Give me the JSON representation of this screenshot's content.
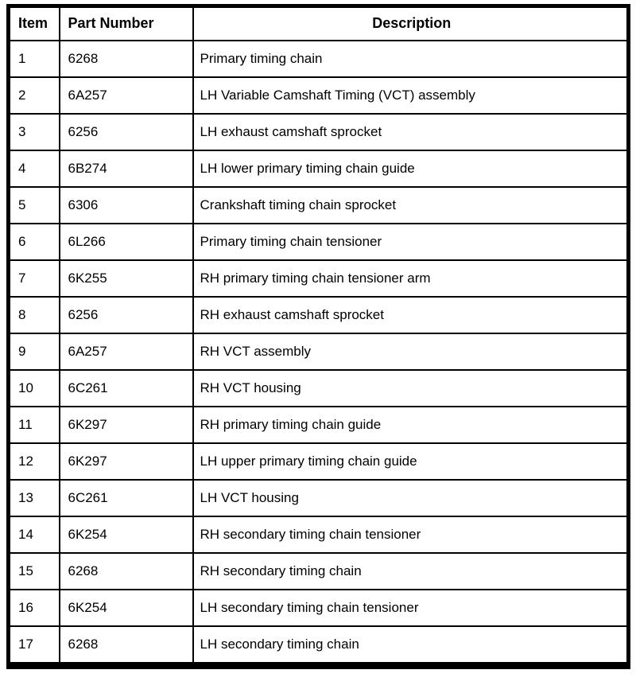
{
  "table": {
    "headers": {
      "item": "Item",
      "part_number": "Part Number",
      "description": "Description"
    },
    "rows": [
      {
        "item": "1",
        "part_number": "6268",
        "description": "Primary timing chain"
      },
      {
        "item": "2",
        "part_number": "6A257",
        "description": "LH Variable Camshaft Timing (VCT) assembly"
      },
      {
        "item": "3",
        "part_number": "6256",
        "description": "LH exhaust camshaft sprocket"
      },
      {
        "item": "4",
        "part_number": "6B274",
        "description": "LH lower primary timing chain guide"
      },
      {
        "item": "5",
        "part_number": "6306",
        "description": "Crankshaft timing chain sprocket"
      },
      {
        "item": "6",
        "part_number": "6L266",
        "description": "Primary timing chain tensioner"
      },
      {
        "item": "7",
        "part_number": "6K255",
        "description": "RH primary timing chain tensioner arm"
      },
      {
        "item": "8",
        "part_number": "6256",
        "description": "RH exhaust camshaft sprocket"
      },
      {
        "item": "9",
        "part_number": "6A257",
        "description": "RH VCT assembly"
      },
      {
        "item": "10",
        "part_number": "6C261",
        "description": "RH VCT housing"
      },
      {
        "item": "11",
        "part_number": "6K297",
        "description": "RH primary timing chain guide"
      },
      {
        "item": "12",
        "part_number": "6K297",
        "description": "LH upper primary timing chain guide"
      },
      {
        "item": "13",
        "part_number": "6C261",
        "description": "LH VCT housing"
      },
      {
        "item": "14",
        "part_number": "6K254",
        "description": "RH secondary timing chain tensioner"
      },
      {
        "item": "15",
        "part_number": "6268",
        "description": "RH secondary timing chain"
      },
      {
        "item": "16",
        "part_number": "6K254",
        "description": "LH secondary timing chain tensioner"
      },
      {
        "item": "17",
        "part_number": "6268",
        "description": "LH secondary timing chain"
      }
    ],
    "colors": {
      "border": "#000000",
      "background": "#ffffff",
      "text": "#000000"
    }
  }
}
